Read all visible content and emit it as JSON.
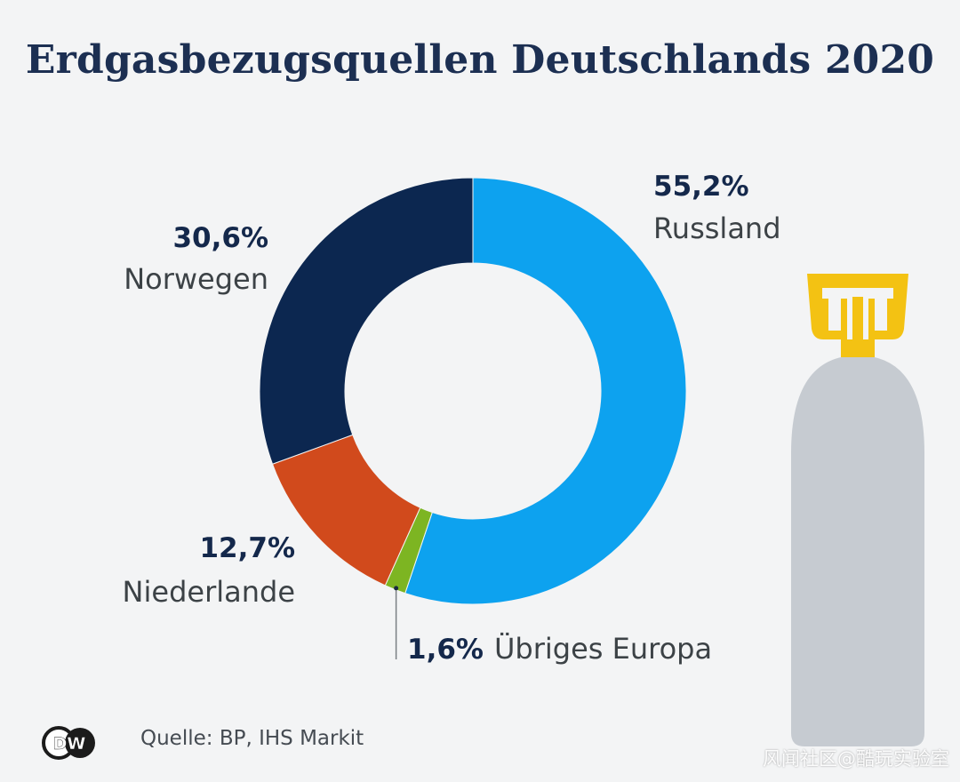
{
  "title": "Erdgasbezugsquellen Deutschlands 2020",
  "chart_data": {
    "type": "pie",
    "title": "Erdgasbezugsquellen Deutschlands 2020",
    "unit": "%",
    "slices": [
      {
        "name": "Russland",
        "value": 55.2,
        "label": "55,2%",
        "color": "#0da2ef"
      },
      {
        "name": "Übriges Europa",
        "value": 1.6,
        "label": "1,6%",
        "color": "#7db522"
      },
      {
        "name": "Niederlande",
        "value": 12.7,
        "label": "12,7%",
        "color": "#d14a1c"
      },
      {
        "name": "Norwegen",
        "value": 30.6,
        "label": "30,6%",
        "color": "#0c2750"
      }
    ]
  },
  "source": "Quelle: BP, IHS Markit",
  "logo_text": "DW",
  "watermark": "风闻社区@酷玩实验室"
}
